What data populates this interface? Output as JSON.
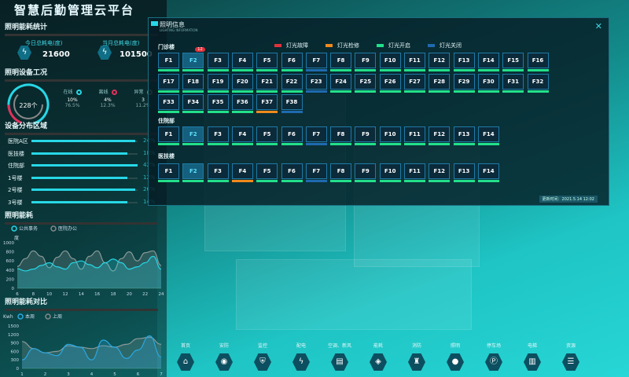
{
  "app_title": "智慧后勤管理云平台",
  "stats": {
    "title": "照明能耗统计",
    "subtitle": "LIGHTING ENERGY STATISTICS",
    "today_label": "今日总耗电(度)",
    "today_value": "21600",
    "month_label": "当月总耗电(度)",
    "month_value": "101500"
  },
  "condition": {
    "title": "照明设备工况",
    "subtitle": "LIGHTING CONDITIONS",
    "total": "228个",
    "items": [
      {
        "label": "在线",
        "value": "10%",
        "sub": "76.5%",
        "color": "#27d7e6"
      },
      {
        "label": "离线",
        "value": "4%",
        "sub": "12.3%",
        "color": "#e0325a"
      },
      {
        "label": "异常",
        "value": "3",
        "sub": "11.2%",
        "color": "#8a7a50"
      }
    ]
  },
  "distribution": {
    "title": "设备分布区域",
    "subtitle": "NUMBER DISTRIBUTION",
    "items": [
      {
        "label": "医院A区",
        "pct": 24,
        "text": "24%",
        "fill": 0.98
      },
      {
        "label": "医技楼",
        "pct": 18,
        "text": "18%",
        "fill": 0.9
      },
      {
        "label": "住院部",
        "pct": 42,
        "text": "42%",
        "fill": 1.0
      },
      {
        "label": "1号楼",
        "pct": 12,
        "text": "12%",
        "fill": 0.9
      },
      {
        "label": "2号楼",
        "pct": 26,
        "text": "26%",
        "fill": 0.98
      },
      {
        "label": "3号楼",
        "pct": 14,
        "text": "14%",
        "fill": 0.9
      }
    ]
  },
  "chart_data": [
    {
      "type": "area",
      "title": "照明能耗",
      "subtitle": "LIGHTING ENERGY CONSUMPTION",
      "ylabel": "度",
      "ylim": [
        0,
        1000
      ],
      "yticks": [
        0,
        200,
        400,
        600,
        800,
        1000
      ],
      "xticks": [
        6,
        8,
        10,
        12,
        14,
        16,
        18,
        20,
        22,
        24
      ],
      "x": [
        6,
        7,
        8,
        9,
        10,
        11,
        12,
        13,
        14,
        15,
        16,
        17,
        18,
        19,
        20,
        21,
        22,
        23,
        24
      ],
      "series": [
        {
          "name": "公共事务",
          "color": "#27d7e6",
          "values": [
            430,
            380,
            420,
            500,
            560,
            470,
            420,
            560,
            600,
            520,
            450,
            560,
            640,
            560,
            420,
            470,
            560,
            700,
            420
          ]
        },
        {
          "name": "医院办公",
          "color": "#8a9a9a",
          "values": [
            480,
            650,
            820,
            700,
            450,
            680,
            820,
            650,
            420,
            700,
            820,
            560,
            380,
            650,
            800,
            600,
            780,
            820,
            500
          ]
        }
      ]
    },
    {
      "type": "area",
      "title": "照明能耗对比",
      "subtitle": "LIGHTING ENERGY COMPARISON",
      "ylabel": "Kwh",
      "ylim": [
        0,
        1500
      ],
      "yticks": [
        0,
        300,
        600,
        900,
        1200,
        1500
      ],
      "xticks": [
        1,
        2,
        3,
        4,
        5,
        6,
        7
      ],
      "x": [
        1,
        1.5,
        2,
        2.5,
        3,
        3.5,
        4,
        4.5,
        5,
        5.5,
        6,
        6.5,
        7
      ],
      "series": [
        {
          "name": "本周",
          "color": "#2aa8e0",
          "values": [
            300,
            700,
            550,
            450,
            850,
            750,
            300,
            1000,
            750,
            350,
            650,
            1150,
            400
          ]
        },
        {
          "name": "上周",
          "color": "#8a9a9a",
          "values": [
            950,
            700,
            550,
            600,
            800,
            750,
            700,
            800,
            750,
            850,
            1050,
            1100,
            850
          ]
        }
      ]
    }
  ],
  "panel": {
    "title": "照明信息",
    "subtitle": "LIGHTING INFORMATION",
    "close": "✕",
    "update": "更新时间：2021.5.14 12:02",
    "legend": [
      {
        "label": "灯光故障",
        "color": "#e0323c"
      },
      {
        "label": "灯光检修",
        "color": "#f08a1c"
      },
      {
        "label": "灯光开启",
        "color": "#22e08a"
      },
      {
        "label": "灯光关闭",
        "color": "#1f6ab0"
      }
    ],
    "groups": [
      {
        "name": "门诊楼",
        "count": 38,
        "selected": "F2",
        "badge": "12",
        "status": {
          "F7": "#1f6ab0",
          "F23": "#1f6ab0",
          "F37": "#f08a1c",
          "F38": "#1f6ab0"
        }
      },
      {
        "name": "住院部",
        "count": 14,
        "selected": "F2",
        "status": {
          "F7": "#1f6ab0"
        }
      },
      {
        "name": "医技楼",
        "count": 14,
        "selected": "F2",
        "status": {
          "F4": "#f08a1c",
          "F7": "#1f6ab0"
        }
      }
    ]
  },
  "nav": [
    {
      "label": "首页",
      "icon": "⌂"
    },
    {
      "label": "安防",
      "icon": "◉"
    },
    {
      "label": "监控",
      "icon": "⛨"
    },
    {
      "label": "配电",
      "icon": "ϟ"
    },
    {
      "label": "空调、新风",
      "icon": "▤"
    },
    {
      "label": "能耗",
      "icon": "◈"
    },
    {
      "label": "消防",
      "icon": "♜"
    },
    {
      "label": "照明",
      "icon": "●"
    },
    {
      "label": "停车场",
      "icon": "Ⓟ"
    },
    {
      "label": "电梯",
      "icon": "▥"
    },
    {
      "label": "资源",
      "icon": "☰"
    }
  ]
}
